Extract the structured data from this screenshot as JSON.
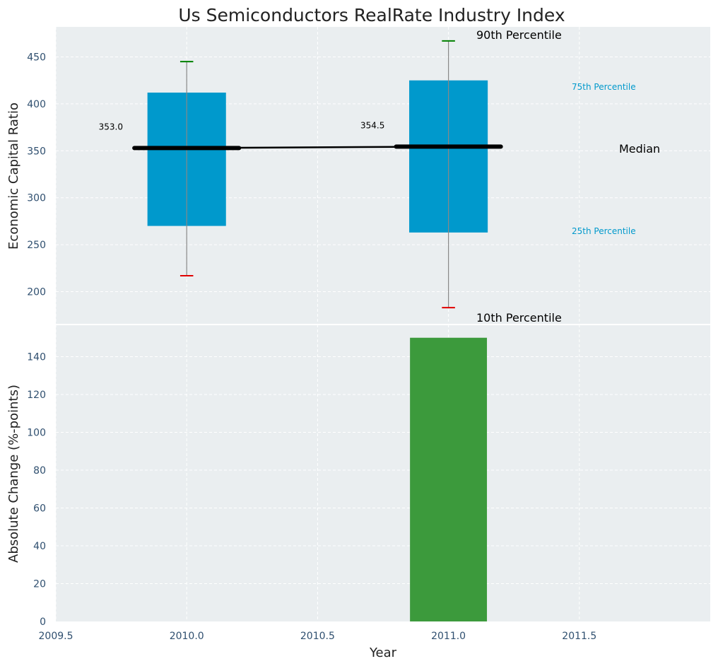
{
  "title": "Us Semiconductors RealRate Industry Index",
  "colors": {
    "plot_bg": "#EAEEF0",
    "grid": "#FFFFFF",
    "box": "#0099CC",
    "bar": "#3C9A3C",
    "median": "#000000",
    "whisker": "#888888",
    "upper_cap": "#008000",
    "lower_cap": "#E00000",
    "tick_text": "#2F4F6F",
    "quartile_label": "#0099CC"
  },
  "chart_data": [
    {
      "type": "box",
      "ylabel": "Economic Capital Ratio",
      "xlim": [
        2009.5,
        2012.0
      ],
      "ylim": [
        165,
        482
      ],
      "yticks": [
        200,
        250,
        300,
        350,
        400,
        450
      ],
      "grid": true,
      "boxes": [
        {
          "x": 2010,
          "p10": 217,
          "q1": 270,
          "median": 353.0,
          "q3": 412,
          "p90": 445,
          "label": "353.0"
        },
        {
          "x": 2011,
          "p10": 183,
          "q1": 263,
          "median": 354.5,
          "q3": 425,
          "p90": 467,
          "label": "354.5"
        }
      ],
      "annotations": {
        "p90": "90th Percentile",
        "q3": "75th Percentile",
        "median": "Median",
        "q1": "25th Percentile",
        "p10": "10th Percentile"
      }
    },
    {
      "type": "bar",
      "xlabel": "Year",
      "ylabel": "Absolute Change (%-points)",
      "xlim": [
        2009.5,
        2012.0
      ],
      "ylim": [
        0,
        157
      ],
      "xticks": [
        2009.5,
        2010.0,
        2010.5,
        2011.0,
        2011.5
      ],
      "xtick_labels": [
        "2009.5",
        "2010.0",
        "2010.5",
        "2011.0",
        "2011.5"
      ],
      "yticks": [
        0,
        20,
        40,
        60,
        80,
        100,
        120,
        140
      ],
      "grid": true,
      "x": [
        2011
      ],
      "values": [
        150
      ]
    }
  ]
}
